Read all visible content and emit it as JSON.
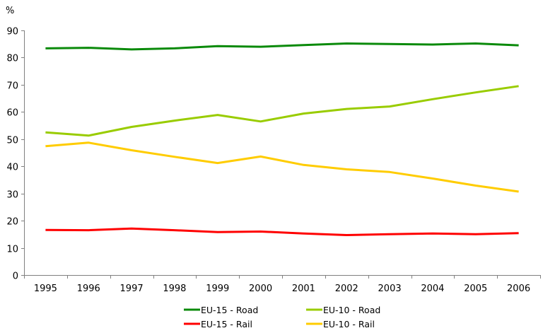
{
  "chart_data": {
    "type": "line",
    "title": "",
    "xlabel": "",
    "ylabel": "%",
    "ylim": [
      0,
      90
    ],
    "yticks": [
      0,
      10,
      20,
      30,
      40,
      50,
      60,
      70,
      80,
      90
    ],
    "grid": false,
    "legend_position": "bottom",
    "categories": [
      "1995",
      "1996",
      "1997",
      "1998",
      "1999",
      "2000",
      "2001",
      "2002",
      "2003",
      "2004",
      "2005",
      "2006"
    ],
    "series": [
      {
        "name": "EU-15 - Road",
        "color": "#0a8a0a",
        "values": [
          83.4,
          83.6,
          83.0,
          83.4,
          84.2,
          84.0,
          84.6,
          85.2,
          85.0,
          84.8,
          85.2,
          84.5
        ]
      },
      {
        "name": "EU-10 - Road",
        "color": "#99cc00",
        "values": [
          52.5,
          51.3,
          54.5,
          56.8,
          58.9,
          56.5,
          59.4,
          61.1,
          62.0,
          64.7,
          67.2,
          69.5
        ]
      },
      {
        "name": "EU-15 - Rail",
        "color": "#ff0000",
        "values": [
          16.6,
          16.5,
          17.1,
          16.5,
          15.8,
          16.0,
          15.3,
          14.7,
          15.0,
          15.3,
          15.0,
          15.4
        ]
      },
      {
        "name": "EU-10 - Rail",
        "color": "#ffcc00",
        "values": [
          47.4,
          48.7,
          45.9,
          43.5,
          41.2,
          43.6,
          40.5,
          38.9,
          37.9,
          35.5,
          32.9,
          30.7
        ]
      }
    ]
  }
}
